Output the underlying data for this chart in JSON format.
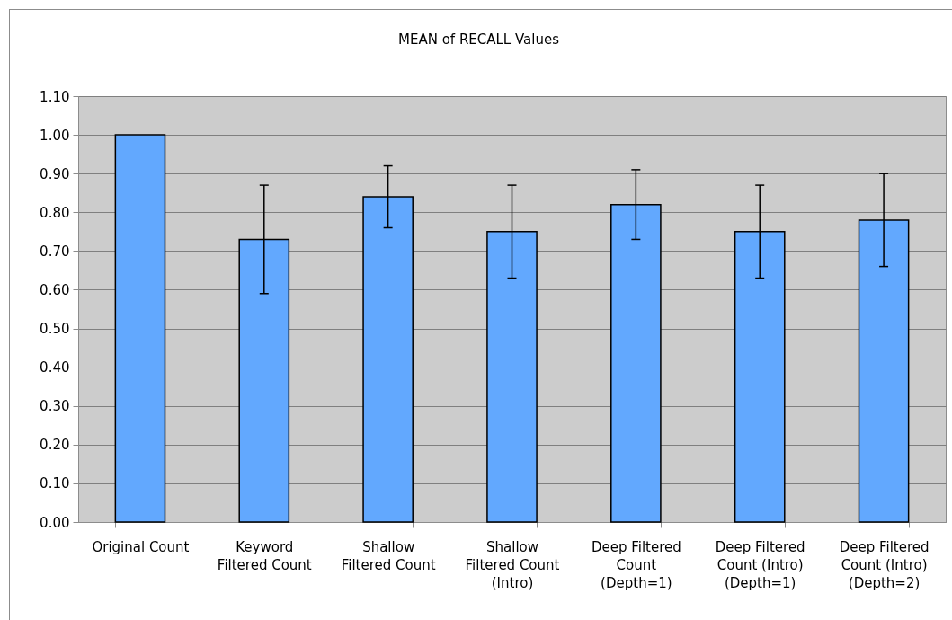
{
  "chart_data": {
    "type": "bar",
    "title": "MEAN of RECALL Values",
    "categories": [
      "Original Count",
      "Keyword Filtered Count",
      "Shallow Filtered Count",
      "Shallow Filtered Count (Intro)",
      "Deep Filtered Count (Depth=1)",
      "Deep Filtered Count (Intro) (Depth=1)",
      "Deep Filtered Count (Intro) (Depth=2)"
    ],
    "values": [
      1.0,
      0.73,
      0.84,
      0.75,
      0.82,
      0.75,
      0.78
    ],
    "errors": [
      null,
      0.14,
      0.08,
      0.12,
      0.09,
      0.12,
      0.12
    ],
    "color": "#62a8fe",
    "ylim": [
      0,
      1.1
    ],
    "yticks": [
      {
        "value": 0,
        "label": "0.00"
      },
      {
        "value": 0.1,
        "label": "0.10"
      },
      {
        "value": 0.2,
        "label": "0.20"
      },
      {
        "value": 0.3,
        "label": "0.30"
      },
      {
        "value": 0.4,
        "label": "0.40"
      },
      {
        "value": 0.5,
        "label": "0.50"
      },
      {
        "value": 0.6,
        "label": "0.60"
      },
      {
        "value": 0.7,
        "label": "0.70"
      },
      {
        "value": 0.8,
        "label": "0.80"
      },
      {
        "value": 0.9,
        "label": "0.90"
      },
      {
        "value": 1,
        "label": "1.00"
      },
      {
        "value": 1.1,
        "label": "1.10"
      }
    ],
    "grid": "y"
  }
}
